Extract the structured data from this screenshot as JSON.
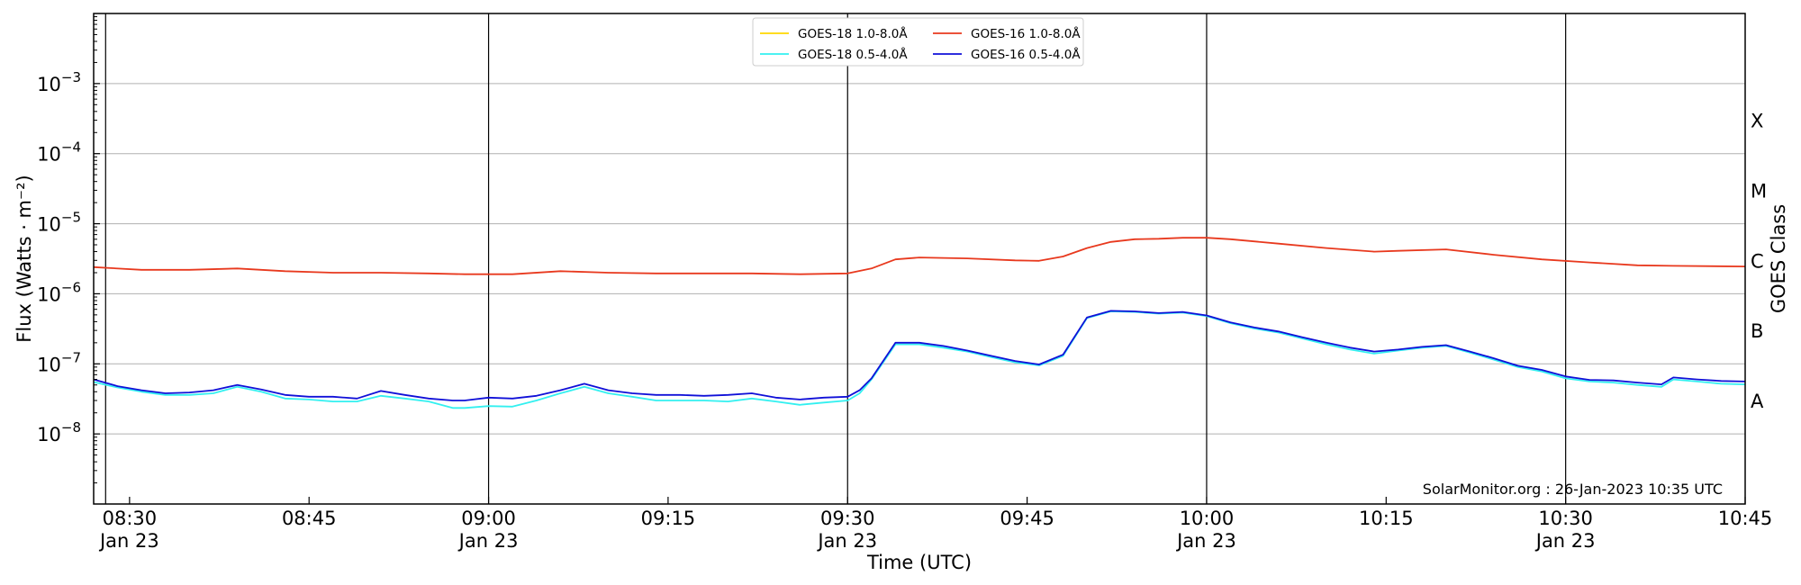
{
  "chart_data": {
    "type": "line",
    "xlabel": "Time (UTC)",
    "ylabel": "Flux (Watts · m⁻²)",
    "right_ylabel": "GOES Class",
    "y_scale": "log",
    "ylim": [
      1e-09,
      0.01
    ],
    "xlim": [
      "08:27",
      "10:45"
    ],
    "y_ticks": [
      {
        "value": 1e-08,
        "base": "10",
        "exp": "−8"
      },
      {
        "value": 1e-07,
        "base": "10",
        "exp": "−7"
      },
      {
        "value": 1e-06,
        "base": "10",
        "exp": "−6"
      },
      {
        "value": 1e-05,
        "base": "10",
        "exp": "−5"
      },
      {
        "value": 0.0001,
        "base": "10",
        "exp": "−4"
      },
      {
        "value": 0.001,
        "base": "10",
        "exp": "−3"
      }
    ],
    "x_ticks": [
      {
        "time": "08:30",
        "label": "08:30",
        "sublabel": "Jan 23"
      },
      {
        "time": "08:45",
        "label": "08:45",
        "sublabel": ""
      },
      {
        "time": "09:00",
        "label": "09:00",
        "sublabel": "Jan 23"
      },
      {
        "time": "09:15",
        "label": "09:15",
        "sublabel": ""
      },
      {
        "time": "09:30",
        "label": "09:30",
        "sublabel": "Jan 23"
      },
      {
        "time": "09:45",
        "label": "09:45",
        "sublabel": ""
      },
      {
        "time": "10:00",
        "label": "10:00",
        "sublabel": "Jan 23"
      },
      {
        "time": "10:15",
        "label": "10:15",
        "sublabel": ""
      },
      {
        "time": "10:30",
        "label": "10:30",
        "sublabel": "Jan 23"
      },
      {
        "time": "10:45",
        "label": "10:45",
        "sublabel": ""
      }
    ],
    "vertical_lines": [
      "08:28",
      "09:00",
      "09:30",
      "10:00",
      "10:30"
    ],
    "goes_classes": [
      {
        "label": "A",
        "value": 3e-08
      },
      {
        "label": "B",
        "value": 3e-07
      },
      {
        "label": "C",
        "value": 3e-06
      },
      {
        "label": "M",
        "value": 3e-05
      },
      {
        "label": "X",
        "value": 0.0003
      }
    ],
    "grid": "horizontal",
    "legend_position": "top-center",
    "series": [
      {
        "name": "GOES-18 1.0-8.0Å",
        "color": "#ffd700",
        "x": [],
        "values": []
      },
      {
        "name": "GOES-18 0.5-4.0Å",
        "color": "#33f0f0",
        "x": [
          "08:27",
          "08:29",
          "08:31",
          "08:33",
          "08:35",
          "08:37",
          "08:39",
          "08:41",
          "08:43",
          "08:45",
          "08:47",
          "08:49",
          "08:51",
          "08:53",
          "08:55",
          "08:57",
          "08:58",
          "09:00",
          "09:02",
          "09:04",
          "09:06",
          "09:08",
          "09:10",
          "09:12",
          "09:14",
          "09:16",
          "09:18",
          "09:20",
          "09:22",
          "09:24",
          "09:26",
          "09:28",
          "09:30",
          "09:31",
          "09:32",
          "09:34",
          "09:36",
          "09:38",
          "09:40",
          "09:42",
          "09:44",
          "09:46",
          "09:48",
          "09:50",
          "09:52",
          "09:54",
          "09:56",
          "09:58",
          "10:00",
          "10:02",
          "10:04",
          "10:06",
          "10:08",
          "10:10",
          "10:12",
          "10:14",
          "10:16",
          "10:18",
          "10:20",
          "10:22",
          "10:24",
          "10:26",
          "10:28",
          "10:30",
          "10:32",
          "10:34",
          "10:36",
          "10:38",
          "10:39",
          "10:41",
          "10:43",
          "10:45"
        ],
        "values": [
          5.5e-08,
          4.6e-08,
          4e-08,
          3.6e-08,
          3.6e-08,
          3.8e-08,
          4.7e-08,
          4e-08,
          3.2e-08,
          3.1e-08,
          2.9e-08,
          2.9e-08,
          3.5e-08,
          3.2e-08,
          2.9e-08,
          2.35e-08,
          2.35e-08,
          2.5e-08,
          2.45e-08,
          3e-08,
          3.8e-08,
          4.7e-08,
          3.8e-08,
          3.4e-08,
          3e-08,
          3e-08,
          3e-08,
          2.9e-08,
          3.2e-08,
          2.9e-08,
          2.6e-08,
          2.8e-08,
          3e-08,
          3.8e-08,
          6e-08,
          1.9e-07,
          1.9e-07,
          1.7e-07,
          1.5e-07,
          1.25e-07,
          1.05e-07,
          9.5e-08,
          1.3e-07,
          4.5e-07,
          5.6e-07,
          5.5e-07,
          5.2e-07,
          5.4e-07,
          4.8e-07,
          3.8e-07,
          3.2e-07,
          2.8e-07,
          2.3e-07,
          1.9e-07,
          1.6e-07,
          1.4e-07,
          1.55e-07,
          1.7e-07,
          1.8e-07,
          1.45e-07,
          1.15e-07,
          9e-08,
          7.8e-08,
          6.2e-08,
          5.6e-08,
          5.4e-08,
          5e-08,
          4.7e-08,
          6e-08,
          5.6e-08,
          5.2e-08,
          5.1e-08
        ]
      },
      {
        "name": "GOES-16 1.0-8.0Å",
        "color": "#e8391e",
        "x": [
          "08:27",
          "08:31",
          "08:35",
          "08:39",
          "08:43",
          "08:47",
          "08:51",
          "08:55",
          "08:58",
          "09:02",
          "09:06",
          "09:10",
          "09:14",
          "09:18",
          "09:22",
          "09:26",
          "09:30",
          "09:32",
          "09:34",
          "09:36",
          "09:40",
          "09:44",
          "09:46",
          "09:48",
          "09:50",
          "09:52",
          "09:54",
          "09:56",
          "09:58",
          "10:00",
          "10:02",
          "10:06",
          "10:10",
          "10:14",
          "10:16",
          "10:20",
          "10:24",
          "10:28",
          "10:32",
          "10:36",
          "10:39",
          "10:45"
        ],
        "values": [
          2.4e-06,
          2.2e-06,
          2.2e-06,
          2.3e-06,
          2.1e-06,
          2e-06,
          2e-06,
          1.95e-06,
          1.9e-06,
          1.9e-06,
          2.1e-06,
          2e-06,
          1.95e-06,
          1.95e-06,
          1.95e-06,
          1.9e-06,
          1.95e-06,
          2.3e-06,
          3.1e-06,
          3.3e-06,
          3.2e-06,
          3e-06,
          2.95e-06,
          3.4e-06,
          4.5e-06,
          5.5e-06,
          6e-06,
          6.1e-06,
          6.3e-06,
          6.3e-06,
          6e-06,
          5.2e-06,
          4.5e-06,
          4e-06,
          4.1e-06,
          4.3e-06,
          3.6e-06,
          3.1e-06,
          2.8e-06,
          2.55e-06,
          2.5e-06,
          2.45e-06
        ]
      },
      {
        "name": "GOES-16 0.5-4.0Å",
        "color": "#1010d8",
        "x": [
          "08:27",
          "08:29",
          "08:31",
          "08:33",
          "08:35",
          "08:37",
          "08:39",
          "08:41",
          "08:43",
          "08:45",
          "08:47",
          "08:49",
          "08:51",
          "08:53",
          "08:55",
          "08:57",
          "08:58",
          "09:00",
          "09:02",
          "09:04",
          "09:06",
          "09:08",
          "09:10",
          "09:12",
          "09:14",
          "09:16",
          "09:18",
          "09:20",
          "09:22",
          "09:24",
          "09:26",
          "09:28",
          "09:30",
          "09:31",
          "09:32",
          "09:34",
          "09:36",
          "09:38",
          "09:40",
          "09:42",
          "09:44",
          "09:46",
          "09:48",
          "09:50",
          "09:52",
          "09:54",
          "09:56",
          "09:58",
          "10:00",
          "10:02",
          "10:04",
          "10:06",
          "10:08",
          "10:10",
          "10:12",
          "10:14",
          "10:16",
          "10:18",
          "10:20",
          "10:22",
          "10:24",
          "10:26",
          "10:28",
          "10:30",
          "10:32",
          "10:34",
          "10:36",
          "10:38",
          "10:39",
          "10:41",
          "10:43",
          "10:45"
        ],
        "values": [
          6e-08,
          4.8e-08,
          4.2e-08,
          3.8e-08,
          3.9e-08,
          4.2e-08,
          5e-08,
          4.3e-08,
          3.6e-08,
          3.4e-08,
          3.4e-08,
          3.2e-08,
          4.1e-08,
          3.6e-08,
          3.2e-08,
          3e-08,
          3e-08,
          3.3e-08,
          3.2e-08,
          3.5e-08,
          4.2e-08,
          5.2e-08,
          4.2e-08,
          3.8e-08,
          3.6e-08,
          3.6e-08,
          3.5e-08,
          3.6e-08,
          3.8e-08,
          3.3e-08,
          3.1e-08,
          3.3e-08,
          3.4e-08,
          4.2e-08,
          6.2e-08,
          2e-07,
          2e-07,
          1.8e-07,
          1.55e-07,
          1.3e-07,
          1.1e-07,
          9.8e-08,
          1.35e-07,
          4.6e-07,
          5.7e-07,
          5.6e-07,
          5.3e-07,
          5.5e-07,
          4.9e-07,
          3.9e-07,
          3.3e-07,
          2.9e-07,
          2.4e-07,
          2e-07,
          1.7e-07,
          1.5e-07,
          1.6e-07,
          1.75e-07,
          1.85e-07,
          1.5e-07,
          1.2e-07,
          9.4e-08,
          8.2e-08,
          6.6e-08,
          5.9e-08,
          5.8e-08,
          5.4e-08,
          5.1e-08,
          6.4e-08,
          6e-08,
          5.7e-08,
          5.6e-08
        ]
      }
    ],
    "annotation": "SolarMonitor.org : 26-Jan-2023 10:35 UTC"
  }
}
